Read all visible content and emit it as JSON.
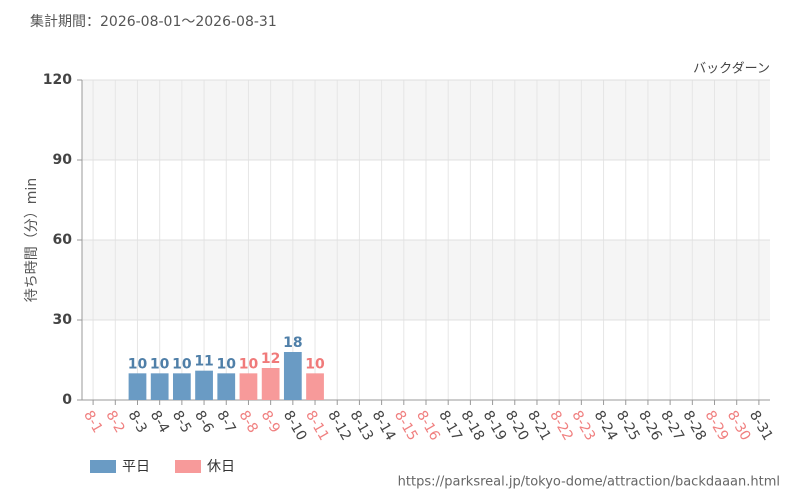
{
  "chart_data": {
    "type": "bar",
    "subtitle": "集計期間：2026-08-01～2026-08-31",
    "annotation": "バックダーン",
    "y_label": "待ち時間（分）min",
    "source": "https://parksreal.jp/tokyo-dome/attraction/backdaaan.html",
    "categories": [
      "8-1",
      "8-2",
      "8-3",
      "8-4",
      "8-5",
      "8-6",
      "8-7",
      "8-8",
      "8-9",
      "8-10",
      "8-11",
      "8-12",
      "8-13",
      "8-14",
      "8-15",
      "8-16",
      "8-17",
      "8-18",
      "8-19",
      "8-20",
      "8-21",
      "8-22",
      "8-23",
      "8-24",
      "8-25",
      "8-26",
      "8-27",
      "8-28",
      "8-29",
      "8-30",
      "8-31"
    ],
    "category_colors": [
      "#f08080",
      "#f08080",
      "#444444",
      "#444444",
      "#444444",
      "#444444",
      "#444444",
      "#f08080",
      "#f08080",
      "#444444",
      "#f08080",
      "#444444",
      "#444444",
      "#444444",
      "#f08080",
      "#f08080",
      "#444444",
      "#444444",
      "#444444",
      "#444444",
      "#444444",
      "#f08080",
      "#f08080",
      "#444444",
      "#444444",
      "#444444",
      "#444444",
      "#444444",
      "#f08080",
      "#f08080",
      "#444444"
    ],
    "series": [
      {
        "name": "平日",
        "color": "#6a9bc4",
        "label_color": "#4f7fa8",
        "values": [
          null,
          null,
          10,
          10,
          10,
          11,
          10,
          null,
          null,
          18,
          null,
          null,
          null,
          null,
          null,
          null,
          null,
          null,
          null,
          null,
          null,
          null,
          null,
          null,
          null,
          null,
          null,
          null,
          null,
          null,
          null
        ]
      },
      {
        "name": "休日",
        "color": "#f79a9a",
        "label_color": "#f07a7a",
        "values": [
          null,
          null,
          null,
          null,
          null,
          null,
          null,
          10,
          12,
          null,
          10,
          null,
          null,
          null,
          null,
          null,
          null,
          null,
          null,
          null,
          null,
          null,
          null,
          null,
          null,
          null,
          null,
          null,
          null,
          null,
          null
        ]
      }
    ],
    "ylim": [
      0,
      120
    ],
    "yticks": [
      0,
      30,
      60,
      90,
      120
    ],
    "grid": true
  }
}
